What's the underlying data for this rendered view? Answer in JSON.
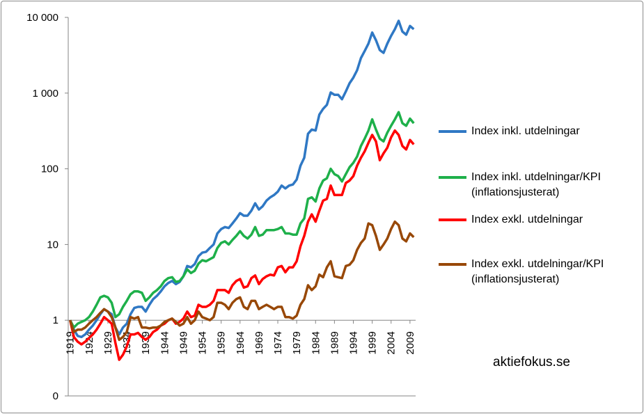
{
  "chart_data": {
    "type": "line",
    "annotation": "aktiefokus.se",
    "log_scale": true,
    "grid": false,
    "legend_position": "right",
    "x": [
      1919,
      1920,
      1921,
      1922,
      1923,
      1924,
      1925,
      1926,
      1927,
      1928,
      1929,
      1930,
      1931,
      1932,
      1933,
      1934,
      1935,
      1936,
      1937,
      1938,
      1939,
      1940,
      1941,
      1942,
      1943,
      1944,
      1945,
      1946,
      1947,
      1948,
      1949,
      1950,
      1951,
      1952,
      1953,
      1954,
      1955,
      1956,
      1957,
      1958,
      1959,
      1960,
      1961,
      1962,
      1963,
      1964,
      1965,
      1966,
      1967,
      1968,
      1969,
      1970,
      1971,
      1972,
      1973,
      1974,
      1975,
      1976,
      1977,
      1978,
      1979,
      1980,
      1981,
      1982,
      1983,
      1984,
      1985,
      1986,
      1987,
      1988,
      1989,
      1990,
      1991,
      1992,
      1993,
      1994,
      1995,
      1996,
      1997,
      1998,
      1999,
      2000,
      2001,
      2002,
      2003,
      2004,
      2005,
      2006,
      2007,
      2008,
      2009,
      2010
    ],
    "xlim": [
      1918.5,
      2010.5
    ],
    "xticks": [
      1919,
      1924,
      1929,
      1934,
      1939,
      1944,
      1949,
      1954,
      1959,
      1964,
      1969,
      1974,
      1979,
      1984,
      1989,
      1994,
      1999,
      2004,
      2009
    ],
    "ylim": [
      0.1,
      10000
    ],
    "yticks": [
      {
        "value": 0.1,
        "label": "0"
      },
      1,
      10,
      100,
      {
        "value": 1000,
        "label": "1 000"
      },
      {
        "value": 10000,
        "label": "10 000"
      }
    ],
    "series": [
      {
        "name": "Index inkl. utdelningar",
        "color": "#2f78c4",
        "values": [
          1,
          0.75,
          0.62,
          0.6,
          0.65,
          0.75,
          0.85,
          1.0,
          1.2,
          1.4,
          1.3,
          1.2,
          0.8,
          0.65,
          0.8,
          0.9,
          1.2,
          1.45,
          1.5,
          1.5,
          1.3,
          1.6,
          1.9,
          2.1,
          2.4,
          2.8,
          3.1,
          3.3,
          3.0,
          3.2,
          3.8,
          5.2,
          5.0,
          5.5,
          7,
          7.8,
          8,
          9,
          10,
          14,
          16,
          17,
          16.5,
          19,
          22,
          26,
          24,
          24,
          28,
          35,
          29,
          32,
          38,
          42,
          45,
          50,
          60,
          55,
          60,
          62,
          72,
          110,
          140,
          290,
          330,
          320,
          520,
          620,
          700,
          1020,
          950,
          950,
          830,
          1050,
          1350,
          1600,
          2000,
          2900,
          3600,
          4500,
          6300,
          5000,
          3700,
          3400,
          4500,
          5700,
          7000,
          9000,
          6500,
          5900,
          7700,
          7000
        ]
      },
      {
        "name": "Index inkl. utdelningar/KPI\n(inflationsjusterat)",
        "color": "#1eb04a",
        "values": [
          1,
          0.8,
          0.9,
          0.95,
          1.0,
          1.1,
          1.3,
          1.6,
          2.0,
          2.1,
          2.0,
          1.7,
          1.1,
          1.2,
          1.5,
          1.8,
          2.2,
          2.4,
          2.4,
          2.3,
          1.8,
          2.0,
          2.3,
          2.5,
          2.8,
          3.3,
          3.6,
          3.7,
          3.2,
          3.3,
          3.8,
          4.7,
          4.2,
          4.5,
          5.6,
          6.2,
          6.0,
          6.4,
          6.8,
          9.0,
          10.5,
          11,
          10,
          11.5,
          13,
          15,
          13,
          12,
          13.5,
          17,
          13,
          13.5,
          15.5,
          15.5,
          15.5,
          16,
          17,
          14,
          14,
          13.5,
          13.5,
          19,
          22,
          40,
          42,
          37,
          55,
          70,
          75,
          100,
          85,
          80,
          68,
          85,
          105,
          120,
          145,
          200,
          250,
          320,
          450,
          330,
          250,
          230,
          300,
          370,
          450,
          560,
          400,
          370,
          460,
          400
        ]
      },
      {
        "name": "Index exkl. utdelningar",
        "color": "#ff0000",
        "values": [
          1,
          0.6,
          0.52,
          0.48,
          0.52,
          0.58,
          0.65,
          0.75,
          0.9,
          1.1,
          1.0,
          0.9,
          0.5,
          0.3,
          0.35,
          0.45,
          0.65,
          0.65,
          0.68,
          0.6,
          0.55,
          0.6,
          0.7,
          0.75,
          0.85,
          0.9,
          1.0,
          1.05,
          0.9,
          0.95,
          1.05,
          1.3,
          1.1,
          1.15,
          1.6,
          1.5,
          1.5,
          1.6,
          1.8,
          2.5,
          2.5,
          2.5,
          2.3,
          2.9,
          3.3,
          3.5,
          2.7,
          2.8,
          3.6,
          3.9,
          3.0,
          3.5,
          3.8,
          4.0,
          3.9,
          5.0,
          5.2,
          4.3,
          5.0,
          5.0,
          6.0,
          9.5,
          13,
          20,
          25,
          20,
          28,
          38,
          40,
          60,
          45,
          45,
          45,
          65,
          70,
          80,
          110,
          140,
          170,
          220,
          280,
          230,
          130,
          160,
          190,
          260,
          320,
          280,
          200,
          180,
          240,
          210
        ]
      },
      {
        "name": "Index exkl. utdelningar/KPI\n(inflationsjusterat)",
        "color": "#984807",
        "values": [
          1,
          0.7,
          0.75,
          0.75,
          0.8,
          0.9,
          1.0,
          1.1,
          1.25,
          1.4,
          1.3,
          1.1,
          0.8,
          0.55,
          0.6,
          0.7,
          1.1,
          1.05,
          1.1,
          0.8,
          0.8,
          0.78,
          0.8,
          0.8,
          0.85,
          0.95,
          1.0,
          1.05,
          0.95,
          0.85,
          0.9,
          1.1,
          0.9,
          1.0,
          1.3,
          1.1,
          1.05,
          1.0,
          1.1,
          1.7,
          1.7,
          1.6,
          1.4,
          1.7,
          1.9,
          2.0,
          1.5,
          1.4,
          1.8,
          1.8,
          1.4,
          1.5,
          1.6,
          1.5,
          1.4,
          1.5,
          1.5,
          1.1,
          1.1,
          1.05,
          1.15,
          1.6,
          1.9,
          2.9,
          2.5,
          2.8,
          4.0,
          3.7,
          5.0,
          6.0,
          3.8,
          3.7,
          3.6,
          5.2,
          5.4,
          6.2,
          8.5,
          10.5,
          12,
          19,
          18,
          13,
          8.5,
          10,
          12,
          16,
          20,
          18,
          12,
          11,
          14,
          12.5
        ]
      }
    ]
  }
}
